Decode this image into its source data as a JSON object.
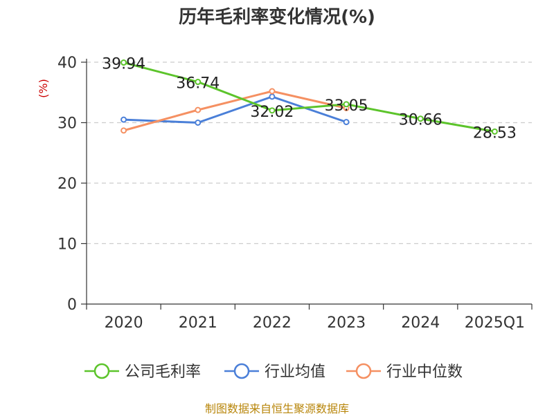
{
  "title": "历年毛利率变化情况(%)",
  "source": "制图数据来自恒生聚源数据库",
  "colors": {
    "company": "#5cc42b",
    "industry_avg": "#4a7fd8",
    "industry_median": "#f59062",
    "grid": "#cccccc",
    "axis": "#333333",
    "unit": "#cc0000"
  },
  "chart_data": {
    "type": "line",
    "title": "历年毛利率变化情况(%)",
    "ylabel": "(%)",
    "categories": [
      "2020",
      "2021",
      "2022",
      "2023",
      "2024",
      "2025Q1"
    ],
    "ylim": [
      0,
      40
    ],
    "yticks": [
      0,
      10,
      20,
      30,
      40
    ],
    "grid": true,
    "legend_position": "bottom",
    "series": [
      {
        "name": "公司毛利率",
        "color": "#5cc42b",
        "values": [
          39.94,
          36.74,
          32.02,
          33.05,
          30.66,
          28.53
        ],
        "labels": [
          "39.94",
          "36.74",
          "32.02",
          "33.05",
          "30.66",
          "28.53"
        ]
      },
      {
        "name": "行业均值",
        "color": "#4a7fd8",
        "values": [
          30.5,
          30.0,
          34.3,
          30.1,
          null,
          null
        ]
      },
      {
        "name": "行业中位数",
        "color": "#f59062",
        "values": [
          28.7,
          32.1,
          35.2,
          32.4,
          null,
          null
        ]
      }
    ]
  }
}
